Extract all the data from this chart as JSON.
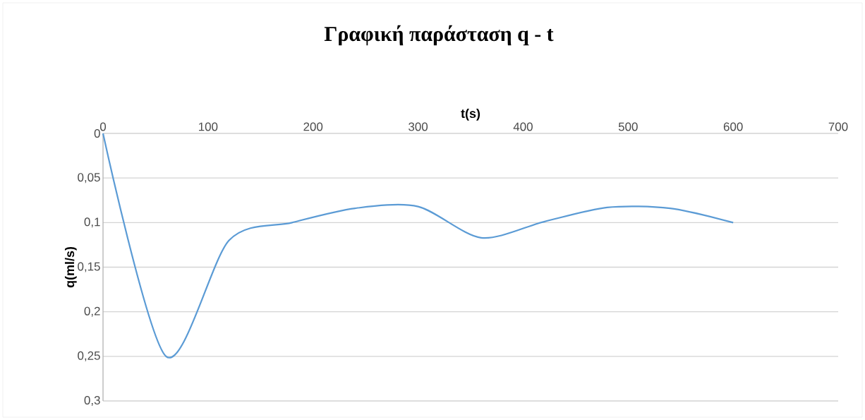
{
  "chart_data": {
    "type": "line",
    "title": "**Γραφική παράσταση q - t**",
    "xlabel": "t(s)",
    "ylabel": "q(ml/s)",
    "x": [
      0,
      60,
      120,
      180,
      240,
      300,
      360,
      420,
      480,
      540,
      600
    ],
    "series": [
      {
        "color": "#5b9bd5",
        "values": [
          0,
          0.25,
          0.12,
          0.1,
          0.084,
          0.082,
          0.117,
          0.099,
          0.083,
          0.084,
          0.1
        ]
      }
    ],
    "xlim": [
      0,
      700
    ],
    "xticks": [
      0,
      100,
      200,
      300,
      400,
      500,
      600,
      700
    ],
    "ylim": [
      0.3,
      0
    ],
    "yticks": [
      {
        "value": 0,
        "label": "0"
      },
      {
        "value": 0.05,
        "label": "0,05"
      },
      {
        "value": 0.1,
        "label": "0,1"
      },
      {
        "value": 0.15,
        "label": "0,15"
      },
      {
        "value": 0.2,
        "label": "0,2"
      },
      {
        "value": 0.25,
        "label": "0,25"
      },
      {
        "value": 0.3,
        "label": "0,3"
      }
    ],
    "grid": "y",
    "marker": "none",
    "line_style": "solid"
  }
}
